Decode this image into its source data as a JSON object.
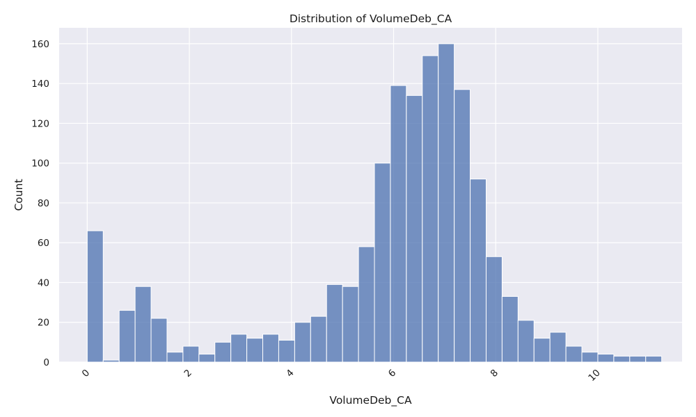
{
  "chart_data": {
    "type": "bar",
    "subtype": "histogram",
    "title": "Distribution of VolumeDeb_CA",
    "xlabel": "VolumeDeb_CA",
    "ylabel": "Count",
    "xlim": [
      -0.55,
      11.65
    ],
    "ylim": [
      0,
      168
    ],
    "x_ticks": [
      0,
      2,
      4,
      6,
      8,
      10
    ],
    "x_tick_labels": [
      "0",
      "2",
      "4",
      "6",
      "8",
      "10"
    ],
    "x_tick_rotation": -45,
    "y_ticks": [
      0,
      20,
      40,
      60,
      80,
      100,
      120,
      140,
      160
    ],
    "y_tick_labels": [
      "0",
      "20",
      "40",
      "60",
      "80",
      "100",
      "120",
      "140",
      "160"
    ],
    "grid": true,
    "colors": {
      "background": "#eaeaf2",
      "bar": "#4c72b0",
      "grid": "#ffffff"
    },
    "bin_start": 0.0,
    "bin_width": 0.3125,
    "values": [
      66,
      1,
      26,
      38,
      22,
      5,
      8,
      4,
      10,
      14,
      12,
      14,
      11,
      20,
      23,
      39,
      38,
      58,
      100,
      139,
      134,
      154,
      160,
      137,
      92,
      53,
      33,
      21,
      12,
      15,
      8,
      5,
      4,
      3,
      3,
      3
    ]
  }
}
